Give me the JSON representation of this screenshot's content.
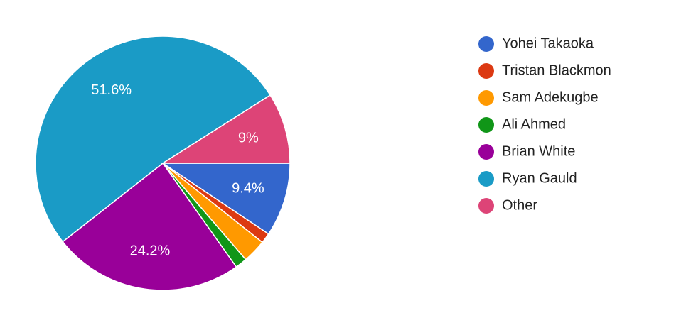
{
  "chart_data": {
    "type": "pie",
    "categories": [
      "Yohei Takaoka",
      "Tristan Blackmon",
      "Sam Adekugbe",
      "Ali Ahmed",
      "Brian White",
      "Ryan Gauld",
      "Other"
    ],
    "values": [
      9.4,
      1.3,
      3.0,
      1.5,
      24.2,
      51.6,
      9
    ],
    "value_labels": [
      "9.4%",
      null,
      null,
      null,
      "24.2%",
      "51.6%",
      "9%"
    ],
    "colors": [
      "#3366cc",
      "#dc3912",
      "#ff9900",
      "#109618",
      "#990099",
      "#1a9bc6",
      "#dd4477"
    ],
    "legend": "right"
  }
}
